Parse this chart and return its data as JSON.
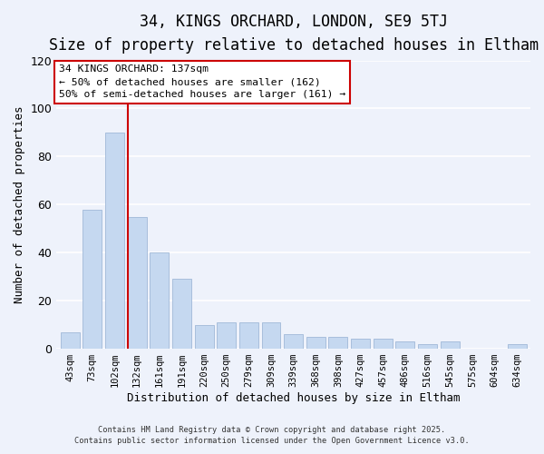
{
  "title": "34, KINGS ORCHARD, LONDON, SE9 5TJ",
  "subtitle": "Size of property relative to detached houses in Eltham",
  "xlabel": "Distribution of detached houses by size in Eltham",
  "ylabel": "Number of detached properties",
  "bar_labels": [
    "43sqm",
    "73sqm",
    "102sqm",
    "132sqm",
    "161sqm",
    "191sqm",
    "220sqm",
    "250sqm",
    "279sqm",
    "309sqm",
    "339sqm",
    "368sqm",
    "398sqm",
    "427sqm",
    "457sqm",
    "486sqm",
    "516sqm",
    "545sqm",
    "575sqm",
    "604sqm",
    "634sqm"
  ],
  "bar_values": [
    7,
    58,
    90,
    55,
    40,
    29,
    10,
    11,
    11,
    11,
    6,
    5,
    5,
    4,
    4,
    3,
    2,
    3,
    0,
    0,
    2
  ],
  "bar_color": "#c5d8f0",
  "bar_edge_color": "#a0b8d8",
  "highlight_bar_index": 3,
  "highlight_line_color": "#cc0000",
  "ylim": [
    0,
    120
  ],
  "yticks": [
    0,
    20,
    40,
    60,
    80,
    100,
    120
  ],
  "annotation_title": "34 KINGS ORCHARD: 137sqm",
  "annotation_line1": "← 50% of detached houses are smaller (162)",
  "annotation_line2": "50% of semi-detached houses are larger (161) →",
  "annotation_box_color": "#ffffff",
  "annotation_box_edge_color": "#cc0000",
  "footer_line1": "Contains HM Land Registry data © Crown copyright and database right 2025.",
  "footer_line2": "Contains public sector information licensed under the Open Government Licence v3.0.",
  "background_color": "#eef2fb",
  "grid_color": "#ffffff",
  "title_fontsize": 12,
  "subtitle_fontsize": 10
}
